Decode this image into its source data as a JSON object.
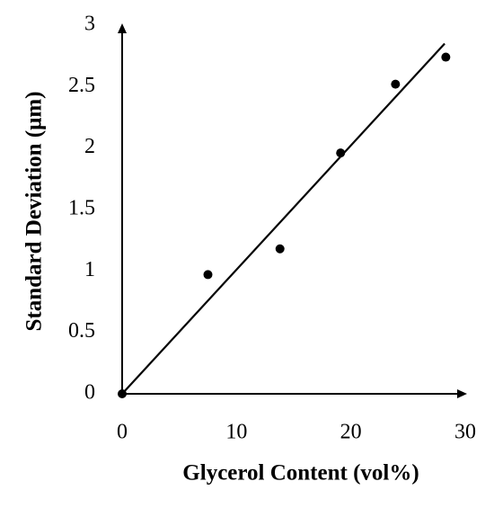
{
  "chart_data": {
    "type": "scatter",
    "x_label": "Glycerol Content (vol%)",
    "y_label": "Standard Deviation (μm)",
    "x": [
      0,
      7.5,
      13.8,
      19.1,
      23.9,
      28.3
    ],
    "values": [
      0,
      0.97,
      1.18,
      1.96,
      2.52,
      2.74
    ],
    "color": "#000000",
    "trend_line": {
      "x": [
        0,
        28.2
      ],
      "y": [
        0,
        2.85
      ]
    },
    "xlim": [
      0,
      30
    ],
    "xticks": [
      0,
      10,
      20,
      30
    ],
    "ylim": [
      0,
      3
    ],
    "yticks": [
      0,
      0.5,
      1,
      1.5,
      2,
      2.5,
      3
    ],
    "grid": false
  }
}
